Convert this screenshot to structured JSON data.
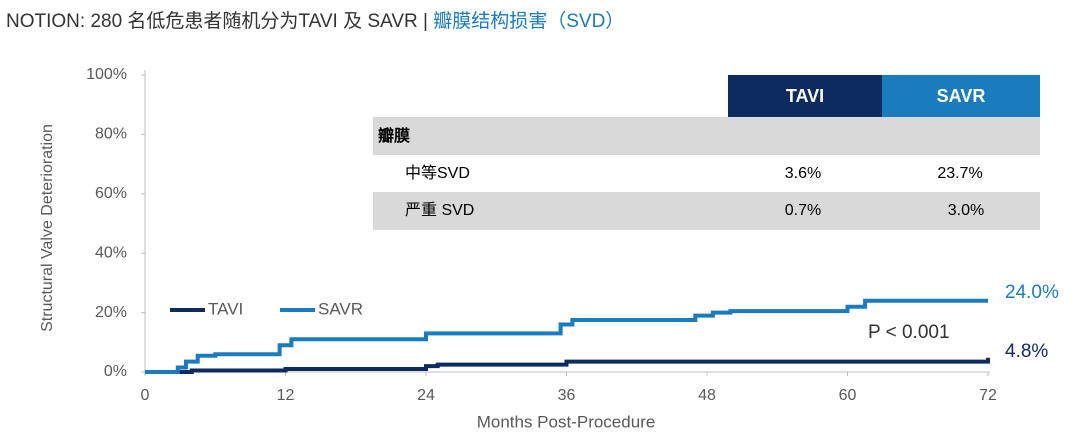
{
  "chart_data": {
    "type": "line",
    "title": "NOTION: 280 名低危患者随机分为TAVI 及 SAVR | ",
    "subtitle": "瓣膜结构损害（SVD）",
    "x_label": "Months Post-Procedure",
    "y_label": "Structural Valve Deterioration",
    "xlim": [
      0,
      72
    ],
    "ylim": [
      0,
      100
    ],
    "xticks": [
      0,
      12,
      24,
      36,
      48,
      60,
      72
    ],
    "yticks": [
      {
        "value": 0,
        "label": "0%"
      },
      {
        "value": 20,
        "label": "20%"
      },
      {
        "value": 40,
        "label": "40%"
      },
      {
        "value": 60,
        "label": "60%"
      },
      {
        "value": 80,
        "label": "80%"
      },
      {
        "value": 100,
        "label": "100%"
      }
    ],
    "series": [
      {
        "name": "TAVI",
        "color": "#0d2b5e",
        "x": [
          0,
          4,
          4,
          12,
          12,
          24,
          24,
          25,
          25,
          36,
          36,
          72,
          72
        ],
        "values": [
          0,
          0,
          0.5,
          0.5,
          1,
          1,
          2,
          2,
          2.5,
          2.5,
          3.5,
          3.5,
          4.8
        ]
      },
      {
        "name": "SAVR",
        "color": "#1a7bbf",
        "x": [
          0,
          2.8,
          2.8,
          3.5,
          3.5,
          4.5,
          4.5,
          6,
          6,
          11.5,
          11.5,
          12.5,
          12.5,
          24,
          24,
          35.5,
          35.5,
          36.5,
          36.5,
          47,
          47,
          48.5,
          48.5,
          50,
          50,
          60,
          60,
          61.5,
          61.5,
          72
        ],
        "values": [
          0,
          0,
          1.5,
          1.5,
          3.5,
          3.5,
          5.5,
          5.5,
          6,
          6,
          9,
          9,
          11,
          11,
          13,
          13,
          16,
          16,
          17.5,
          17.5,
          19,
          19,
          20,
          20,
          20.5,
          20.5,
          22,
          22,
          24,
          24
        ]
      }
    ],
    "annotations": [
      "24.0%",
      "4.8%",
      "P < 0.001"
    ],
    "table": {
      "headers": [
        "TAVI",
        "SAVR"
      ],
      "section": "瓣膜",
      "rows": [
        [
          "中等SVD",
          "3.6%",
          "23.7%"
        ],
        [
          "严重 SVD",
          "0.7%",
          "3.0%"
        ]
      ]
    }
  }
}
